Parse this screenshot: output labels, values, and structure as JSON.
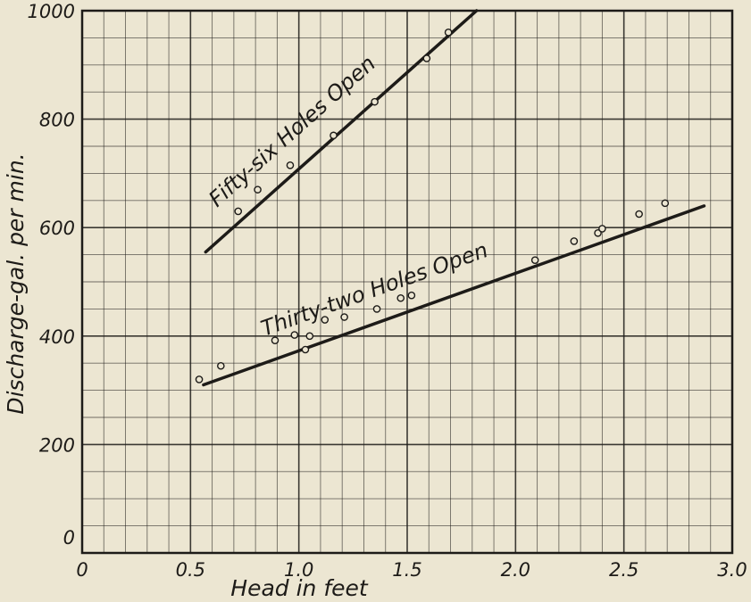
{
  "chart_data": {
    "type": "scatter",
    "title": "",
    "xlabel": "Head in feet",
    "ylabel": "Discharge-gal. per min.",
    "xlim": [
      0,
      3.0
    ],
    "ylim": [
      0,
      1000
    ],
    "x_ticks": [
      "0",
      "0.5",
      "1.0",
      "1.5",
      "2.0",
      "2.5",
      "3.0"
    ],
    "y_ticks": [
      "0",
      "200",
      "400",
      "600",
      "800",
      "1000"
    ],
    "grid": true,
    "series": [
      {
        "name": "Fifty-six Holes Open",
        "color": "#1d1b18",
        "points": [
          {
            "x": 0.72,
            "y": 630
          },
          {
            "x": 0.81,
            "y": 670
          },
          {
            "x": 0.96,
            "y": 715
          },
          {
            "x": 1.16,
            "y": 770
          },
          {
            "x": 1.35,
            "y": 832
          },
          {
            "x": 1.59,
            "y": 912
          },
          {
            "x": 1.69,
            "y": 960
          }
        ],
        "fit_line": [
          {
            "x": 0.57,
            "y": 555
          },
          {
            "x": 1.82,
            "y": 1000
          }
        ]
      },
      {
        "name": "Thirty-two Holes Open",
        "color": "#1d1b18",
        "points": [
          {
            "x": 0.54,
            "y": 320
          },
          {
            "x": 0.64,
            "y": 345
          },
          {
            "x": 0.89,
            "y": 392
          },
          {
            "x": 0.98,
            "y": 402
          },
          {
            "x": 1.03,
            "y": 375
          },
          {
            "x": 1.05,
            "y": 400
          },
          {
            "x": 1.12,
            "y": 430
          },
          {
            "x": 1.21,
            "y": 435
          },
          {
            "x": 1.36,
            "y": 450
          },
          {
            "x": 1.47,
            "y": 470
          },
          {
            "x": 1.52,
            "y": 475
          },
          {
            "x": 2.09,
            "y": 540
          },
          {
            "x": 2.27,
            "y": 575
          },
          {
            "x": 2.38,
            "y": 590
          },
          {
            "x": 2.4,
            "y": 598
          },
          {
            "x": 2.57,
            "y": 625
          },
          {
            "x": 2.69,
            "y": 645
          }
        ],
        "fit_line": [
          {
            "x": 0.56,
            "y": 310
          },
          {
            "x": 2.87,
            "y": 640
          }
        ]
      }
    ]
  }
}
